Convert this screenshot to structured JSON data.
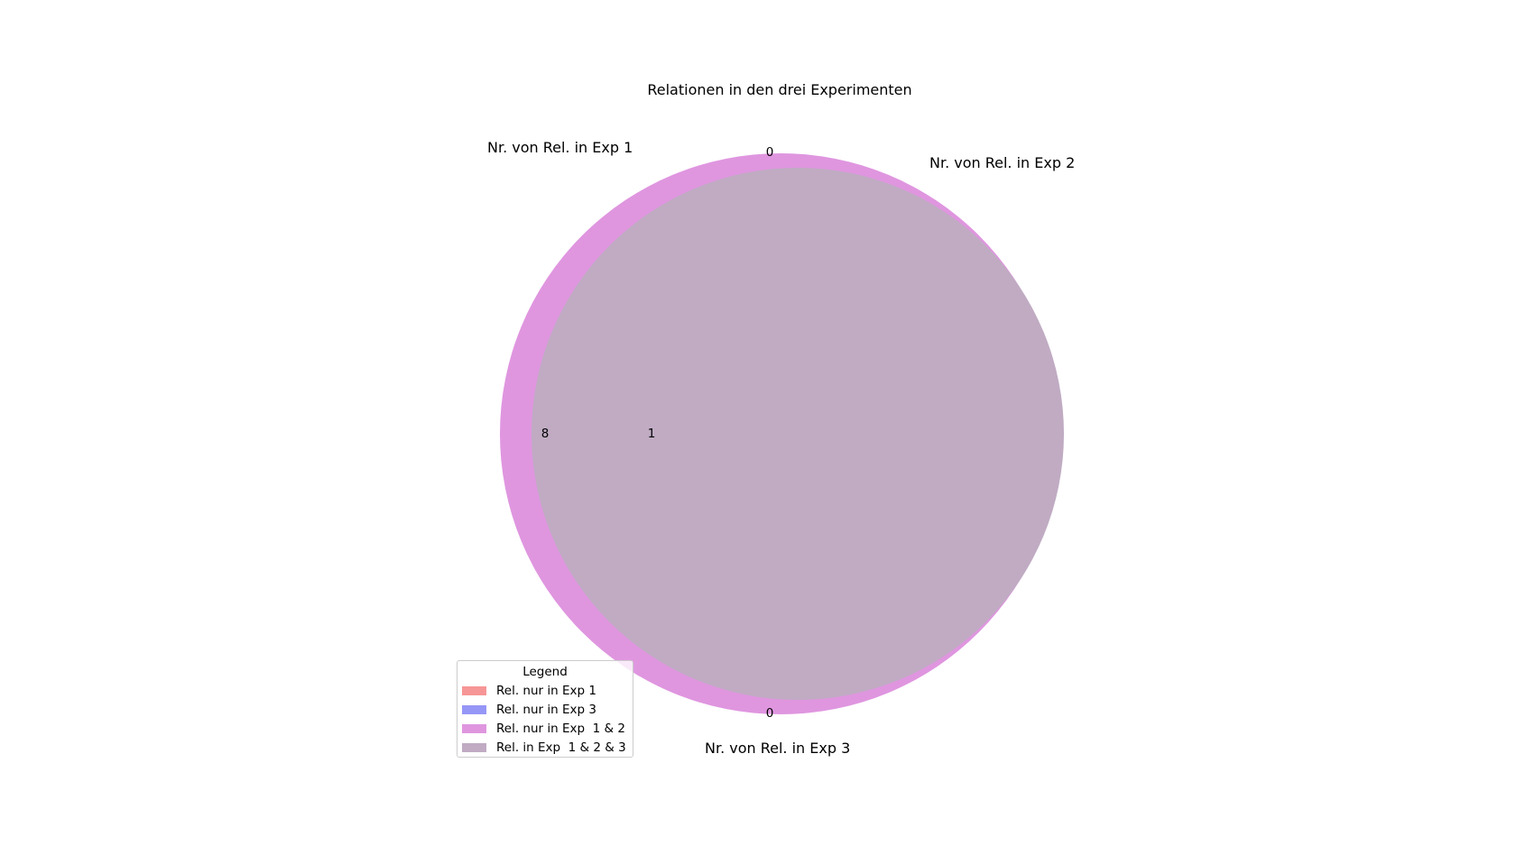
{
  "title": "Relationen in den drei Experimenten",
  "set_labels": {
    "exp1": "Nr. von Rel. in Exp 1",
    "exp2": "Nr. von Rel. in Exp 2",
    "exp3": "Nr. von Rel. in Exp 3"
  },
  "region_counts": {
    "top": "0",
    "left": "8",
    "center_left": "1",
    "bottom": "0"
  },
  "legend": {
    "title": "Legend",
    "items": [
      {
        "label": "Rel. nur in Exp 1",
        "color": "#f79696"
      },
      {
        "label": "Rel. nur in Exp 3",
        "color": "#9696f7"
      },
      {
        "label": "Rel. nur in Exp  1 & 2",
        "color": "#df96df"
      },
      {
        "label": "Rel. in Exp  1 & 2 & 3",
        "color": "#c0abc3"
      }
    ]
  },
  "colors": {
    "only_1_2": "#df96df",
    "all_three": "#c0abc3",
    "background": "#ffffff"
  }
}
